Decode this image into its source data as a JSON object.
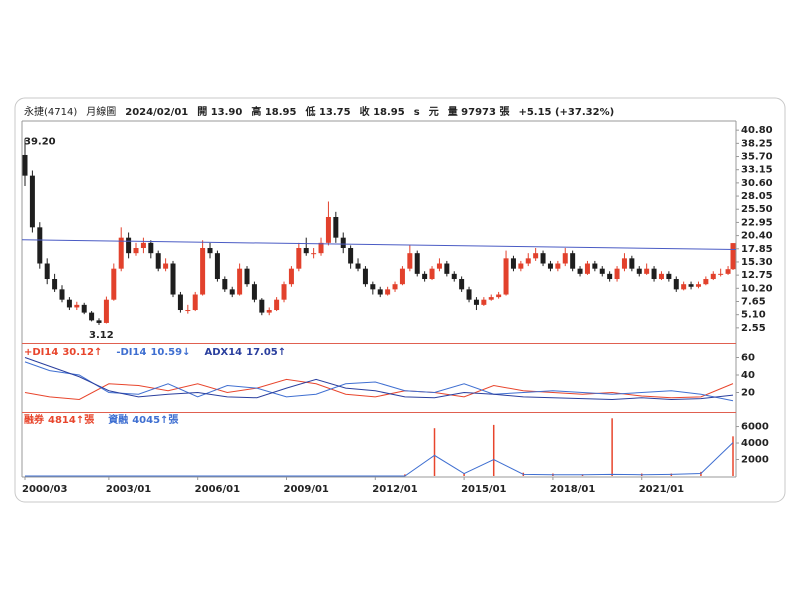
{
  "header": {
    "items": [
      "永捷(4714)",
      "月線圖",
      "2024/02/01",
      "開 13.90",
      "高 18.95",
      "低 13.75",
      "收 18.95",
      "s",
      "元",
      "量 97973 張",
      "+5.15 (+37.32%)"
    ]
  },
  "chart_data": [
    {
      "type": "candlestick",
      "x": [
        "2000/03",
        "2000/06",
        "2000/09",
        "2000/12",
        "2001/03",
        "2001/06",
        "2001/09",
        "2001/12",
        "2002/03",
        "2002/06",
        "2002/09",
        "2002/12",
        "2003/03",
        "2003/06",
        "2003/09",
        "2003/12",
        "2004/03",
        "2004/06",
        "2004/09",
        "2004/12",
        "2005/03",
        "2005/06",
        "2005/09",
        "2005/12",
        "2006/03",
        "2006/06",
        "2006/09",
        "2006/12",
        "2007/03",
        "2007/06",
        "2007/09",
        "2007/12",
        "2008/03",
        "2008/06",
        "2008/09",
        "2008/12",
        "2009/03",
        "2009/06",
        "2009/09",
        "2009/12",
        "2010/03",
        "2010/06",
        "2010/09",
        "2010/12",
        "2011/03",
        "2011/06",
        "2011/09",
        "2011/12",
        "2012/03",
        "2012/06",
        "2012/09",
        "2012/12",
        "2013/03",
        "2013/06",
        "2013/09",
        "2013/12",
        "2014/03",
        "2014/06",
        "2014/09",
        "2014/12",
        "2015/03",
        "2015/06",
        "2015/09",
        "2015/12",
        "2016/03",
        "2016/06",
        "2016/09",
        "2016/12",
        "2017/03",
        "2017/06",
        "2017/09",
        "2017/12",
        "2018/03",
        "2018/06",
        "2018/09",
        "2018/12",
        "2019/03",
        "2019/06",
        "2019/09",
        "2019/12",
        "2020/03",
        "2020/06",
        "2020/09",
        "2020/12",
        "2021/03",
        "2021/06",
        "2021/09",
        "2021/12",
        "2022/03",
        "2022/06",
        "2022/09",
        "2022/12",
        "2023/03",
        "2023/06",
        "2023/09",
        "2023/12",
        "2024/02"
      ],
      "candles": [
        [
          36,
          39.2,
          30,
          32
        ],
        [
          32,
          33,
          21,
          22
        ],
        [
          22,
          23,
          14,
          15
        ],
        [
          15,
          16,
          11,
          12
        ],
        [
          12,
          13,
          9.5,
          10
        ],
        [
          10,
          10.8,
          7.5,
          8
        ],
        [
          8,
          8.5,
          6,
          6.5
        ],
        [
          6.5,
          7.6,
          6,
          7
        ],
        [
          7,
          7.4,
          5.2,
          5.5
        ],
        [
          5.5,
          5.8,
          3.8,
          4
        ],
        [
          4,
          4.4,
          3.12,
          3.5
        ],
        [
          3.5,
          8.6,
          3.4,
          8
        ],
        [
          8,
          15,
          7.8,
          14
        ],
        [
          14,
          22,
          13.5,
          20
        ],
        [
          20,
          21,
          16,
          17
        ],
        [
          17,
          19,
          16.5,
          18
        ],
        [
          18,
          20,
          17,
          19
        ],
        [
          19,
          19.5,
          16,
          17
        ],
        [
          17,
          17.5,
          13.5,
          14
        ],
        [
          14,
          16,
          13.5,
          15
        ],
        [
          15,
          15.5,
          8.5,
          9
        ],
        [
          9,
          9.5,
          5.5,
          6
        ],
        [
          6,
          7,
          5.3,
          6
        ],
        [
          6,
          9.5,
          5.8,
          9
        ],
        [
          9,
          19.5,
          8.8,
          18
        ],
        [
          18,
          19,
          16,
          17
        ],
        [
          17,
          17.5,
          11.5,
          12
        ],
        [
          12,
          12.5,
          9.5,
          10
        ],
        [
          10,
          10.5,
          8.5,
          9
        ],
        [
          9,
          15,
          8.8,
          14
        ],
        [
          14,
          14.5,
          10.5,
          11
        ],
        [
          11,
          11.5,
          7.5,
          8
        ],
        [
          8,
          8.3,
          5,
          5.5
        ],
        [
          5.5,
          6.5,
          5,
          6
        ],
        [
          6,
          8.5,
          5.8,
          8
        ],
        [
          8,
          11.5,
          7.5,
          11
        ],
        [
          11,
          14.5,
          10.5,
          14
        ],
        [
          14,
          19,
          13.5,
          18
        ],
        [
          18,
          20,
          16.5,
          17
        ],
        [
          17,
          18,
          16,
          17
        ],
        [
          17,
          20,
          16.5,
          19
        ],
        [
          19,
          27,
          18.5,
          24
        ],
        [
          24,
          25,
          19,
          20
        ],
        [
          20,
          21,
          17,
          18
        ],
        [
          18,
          18.5,
          14,
          15
        ],
        [
          15,
          16,
          13.5,
          14
        ],
        [
          14,
          14.5,
          10.5,
          11
        ],
        [
          11,
          11.5,
          9,
          10
        ],
        [
          10,
          10.5,
          8.5,
          9
        ],
        [
          9,
          10.5,
          8.8,
          10
        ],
        [
          10,
          11.5,
          9.5,
          11
        ],
        [
          11,
          14.5,
          10.8,
          14
        ],
        [
          14,
          18.5,
          13.5,
          17
        ],
        [
          17,
          17.5,
          12.5,
          13
        ],
        [
          13,
          13.5,
          11.5,
          12
        ],
        [
          12,
          14.5,
          11.8,
          14
        ],
        [
          14,
          16,
          13.5,
          15
        ],
        [
          15,
          15.5,
          12.5,
          13
        ],
        [
          13,
          13.5,
          11.5,
          12
        ],
        [
          12,
          12.5,
          9.5,
          10
        ],
        [
          10,
          10.5,
          7.5,
          8
        ],
        [
          8,
          8.5,
          6,
          7
        ],
        [
          7,
          8.5,
          6.8,
          8
        ],
        [
          8,
          9,
          7.8,
          8.5
        ],
        [
          8.5,
          9.5,
          8.2,
          9
        ],
        [
          9,
          17.5,
          8.8,
          16
        ],
        [
          16,
          16.5,
          13.5,
          14
        ],
        [
          14,
          15.5,
          13.5,
          15
        ],
        [
          15,
          17,
          14.5,
          16
        ],
        [
          16,
          18,
          15.5,
          17
        ],
        [
          17,
          17.5,
          14.5,
          15
        ],
        [
          15,
          15.5,
          13.5,
          14
        ],
        [
          14,
          15.5,
          13.5,
          15
        ],
        [
          15,
          18,
          14.5,
          17
        ],
        [
          17,
          17.5,
          13.5,
          14
        ],
        [
          14,
          14.5,
          12.5,
          13
        ],
        [
          13,
          15.5,
          12.8,
          15
        ],
        [
          15,
          15.5,
          13.5,
          14
        ],
        [
          14,
          14.5,
          12.5,
          13
        ],
        [
          13,
          13.5,
          11.5,
          12
        ],
        [
          12,
          14.5,
          11.5,
          14
        ],
        [
          14,
          17,
          13.5,
          16
        ],
        [
          16,
          16.5,
          13.5,
          14
        ],
        [
          14,
          14.5,
          12.5,
          13
        ],
        [
          13,
          15,
          12.8,
          14
        ],
        [
          14,
          14.5,
          11.5,
          12
        ],
        [
          12,
          13.5,
          11.8,
          13
        ],
        [
          13,
          13.5,
          11.5,
          12
        ],
        [
          12,
          12.5,
          9.5,
          10
        ],
        [
          10,
          11.5,
          9.8,
          11
        ],
        [
          11,
          11.5,
          10,
          10.5
        ],
        [
          10.5,
          11.5,
          10.2,
          11
        ],
        [
          11,
          12.5,
          10.8,
          12
        ],
        [
          12,
          13.5,
          11.8,
          13
        ],
        [
          13,
          14,
          12.5,
          13
        ],
        [
          13,
          14.5,
          12.8,
          13.9
        ],
        [
          13.9,
          18.95,
          13.75,
          18.95
        ]
      ],
      "up_color": "#e2412c",
      "down_color": "#1e1e1e",
      "trendline": {
        "x": [
          "2000/03",
          "2024/02"
        ],
        "values": [
          19.6,
          17.7
        ],
        "color": "#4a5bc4"
      },
      "annotations": [
        {
          "value": 39.2,
          "label": "39.20"
        },
        {
          "value": 3.12,
          "label": "3.12"
        }
      ],
      "ylim": [
        0.2,
        41.8
      ],
      "yticks": [
        {
          "value": 40.8,
          "label": "40.80"
        },
        38.25,
        {
          "value": 35.7,
          "label": "35.70"
        },
        33.15,
        {
          "value": 30.6,
          "label": "30.60"
        },
        28.05,
        {
          "value": 25.5,
          "label": "25.50"
        },
        22.95,
        {
          "value": 20.4,
          "label": "20.40"
        },
        17.85,
        {
          "value": 15.3,
          "label": "15.30"
        },
        12.75,
        {
          "value": 10.2,
          "label": "10.20"
        },
        7.65,
        {
          "value": 5.1,
          "label": "5.10"
        },
        2.55
      ]
    },
    {
      "type": "line",
      "x": [
        "2000/03",
        "2001/01",
        "2002/01",
        "2003/01",
        "2004/01",
        "2005/01",
        "2006/01",
        "2007/01",
        "2008/01",
        "2009/01",
        "2010/01",
        "2011/01",
        "2012/01",
        "2013/01",
        "2014/01",
        "2015/01",
        "2016/01",
        "2017/01",
        "2018/01",
        "2019/01",
        "2020/01",
        "2021/01",
        "2022/01",
        "2023/01",
        "2024/02"
      ],
      "series": [
        {
          "name": "+DI14",
          "label": "30.12↑",
          "color": "#e8452c",
          "values": [
            20,
            15,
            12,
            30,
            28,
            22,
            30,
            20,
            25,
            35,
            30,
            18,
            15,
            22,
            20,
            15,
            28,
            22,
            20,
            18,
            20,
            16,
            14,
            15,
            30.12
          ]
        },
        {
          "name": "-DI14",
          "label": "10.59↓",
          "color": "#3f6fd1",
          "values": [
            55,
            45,
            40,
            20,
            18,
            30,
            15,
            28,
            25,
            15,
            18,
            30,
            32,
            22,
            20,
            30,
            18,
            20,
            22,
            20,
            18,
            20,
            22,
            18,
            10.59
          ]
        },
        {
          "name": "ADX14",
          "label": "17.05↑",
          "color": "#2a3f9e",
          "values": [
            60,
            50,
            38,
            22,
            15,
            18,
            20,
            15,
            14,
            25,
            35,
            25,
            22,
            15,
            14,
            20,
            18,
            15,
            14,
            13,
            12,
            14,
            12,
            13,
            17.05
          ]
        }
      ],
      "ylim": [
        0,
        72
      ],
      "yticks": [
        20,
        40,
        60
      ]
    },
    {
      "type": "line",
      "x": [
        "2000/03",
        "2001/01",
        "2002/01",
        "2003/01",
        "2004/01",
        "2005/01",
        "2006/01",
        "2007/01",
        "2008/01",
        "2009/01",
        "2010/01",
        "2011/01",
        "2012/01",
        "2013/01",
        "2014/01",
        "2015/01",
        "2016/01",
        "2017/01",
        "2018/01",
        "2019/01",
        "2020/01",
        "2021/01",
        "2022/01",
        "2023/01",
        "2024/02"
      ],
      "series": [
        {
          "name": "融券",
          "label": "4814↑張",
          "color": "#e8452c",
          "style": "bar",
          "values": [
            0,
            0,
            0,
            0,
            0,
            0,
            0,
            0,
            0,
            0,
            0,
            0,
            0,
            200,
            5800,
            300,
            6200,
            400,
            300,
            200,
            7000,
            300,
            300,
            500,
            4814
          ]
        },
        {
          "name": "資融",
          "label": "4045↑張",
          "color": "#3f6fd1",
          "style": "line",
          "values": [
            0,
            0,
            0,
            0,
            0,
            0,
            0,
            0,
            0,
            0,
            0,
            0,
            0,
            0,
            2500,
            300,
            2000,
            200,
            150,
            150,
            200,
            150,
            200,
            300,
            4045
          ]
        }
      ],
      "ylim": [
        0,
        7400
      ],
      "yticks": [
        2000,
        4000,
        6000
      ],
      "xticks": [
        "2000/03",
        "2003/01",
        "2006/01",
        "2009/01",
        "2012/01",
        "2015/01",
        "2018/01",
        "2021/01"
      ]
    }
  ]
}
